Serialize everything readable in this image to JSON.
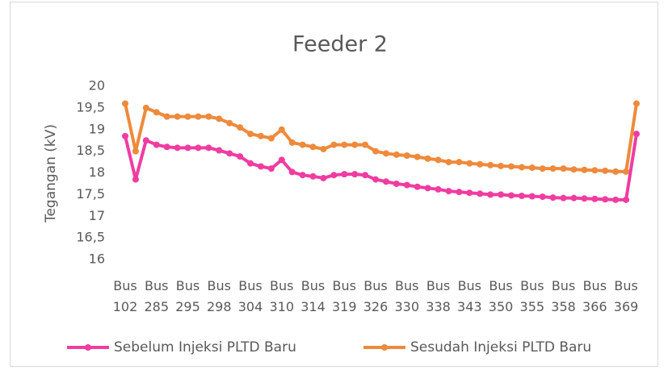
{
  "chart_data": {
    "type": "line",
    "title": "Feeder 2",
    "y_label": "Tegangan (kV)",
    "categories": [
      "Bus 102",
      null,
      null,
      "Bus 285",
      null,
      null,
      "Bus 295",
      null,
      null,
      "Bus 298",
      null,
      null,
      "Bus 304",
      null,
      null,
      "Bus 310",
      null,
      null,
      "Bus 314",
      null,
      null,
      "Bus 319",
      null,
      null,
      "Bus 326",
      null,
      null,
      "Bus 330",
      null,
      null,
      "Bus 338",
      null,
      null,
      "Bus 343",
      null,
      null,
      "Bus 350",
      null,
      null,
      "Bus 355",
      null,
      null,
      "Bus 358",
      null,
      null,
      "Bus 366",
      null,
      null,
      "Bus 369",
      null
    ],
    "series": [
      {
        "name": "Sebelum Injeksi PLTD Baru",
        "color": "#f03ca0",
        "values": [
          18.85,
          17.85,
          18.75,
          18.65,
          18.6,
          18.58,
          18.58,
          18.58,
          18.58,
          18.52,
          18.45,
          18.38,
          18.22,
          18.15,
          18.1,
          18.3,
          18.02,
          17.95,
          17.92,
          17.88,
          17.95,
          17.97,
          17.97,
          17.95,
          17.85,
          17.8,
          17.75,
          17.72,
          17.68,
          17.65,
          17.62,
          17.58,
          17.56,
          17.54,
          17.52,
          17.5,
          17.5,
          17.48,
          17.47,
          17.46,
          17.45,
          17.43,
          17.42,
          17.42,
          17.41,
          17.4,
          17.39,
          17.38,
          17.38,
          18.9
        ]
      },
      {
        "name": "Sesudah Injeksi PLTD Baru",
        "color": "#ee8a3c",
        "values": [
          19.6,
          18.5,
          19.5,
          19.4,
          19.3,
          19.3,
          19.3,
          19.3,
          19.3,
          19.25,
          19.15,
          19.05,
          18.9,
          18.85,
          18.8,
          19.0,
          18.7,
          18.65,
          18.6,
          18.55,
          18.65,
          18.65,
          18.65,
          18.65,
          18.5,
          18.45,
          18.42,
          18.4,
          18.37,
          18.33,
          18.3,
          18.25,
          18.25,
          18.22,
          18.2,
          18.18,
          18.16,
          18.15,
          18.13,
          18.12,
          18.1,
          18.1,
          18.1,
          18.08,
          18.07,
          18.06,
          18.05,
          18.03,
          18.03,
          19.6
        ]
      }
    ],
    "ylim": [
      16,
      20
    ],
    "yticks": [
      16,
      {
        "value": 16.5,
        "label": "16,5"
      },
      17,
      {
        "value": 17.5,
        "label": "17,5"
      },
      18,
      {
        "value": 18.5,
        "label": "18,5"
      },
      19,
      {
        "value": 19.5,
        "label": "19,5"
      },
      20
    ],
    "grid": false,
    "legend": "bottom"
  }
}
